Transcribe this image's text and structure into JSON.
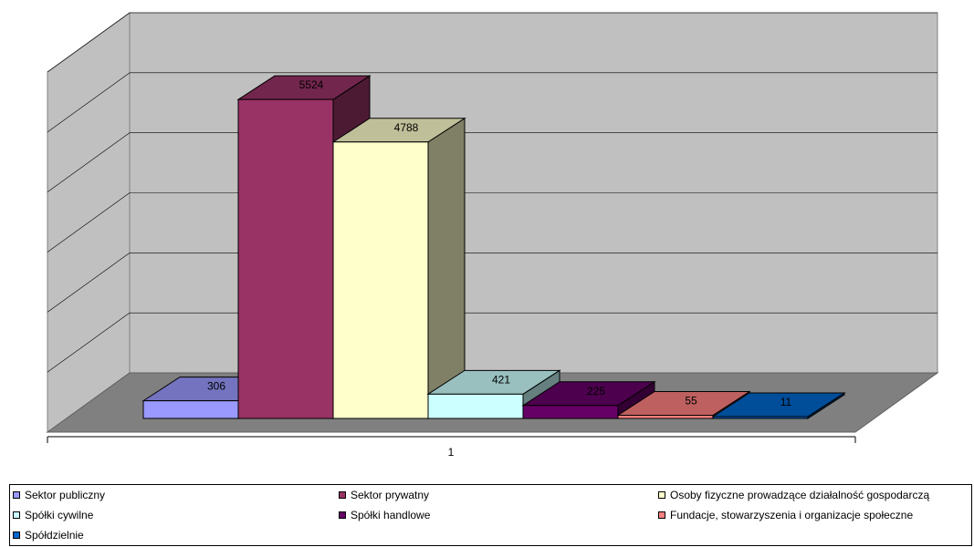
{
  "chart_data": {
    "type": "bar",
    "categories": [
      "1"
    ],
    "series": [
      {
        "name": "Sektor publiczny",
        "values": [
          306
        ],
        "color": "#9999FF"
      },
      {
        "name": "Sektor prywatny",
        "values": [
          5524
        ],
        "color": "#993366"
      },
      {
        "name": "Osoby fizyczne prowadzące działalność gospodarczą",
        "values": [
          4788
        ],
        "color": "#FFFFCC"
      },
      {
        "name": "Spółki cywilne",
        "values": [
          421
        ],
        "color": "#CCFFFF"
      },
      {
        "name": "Spółki handlowe",
        "values": [
          225
        ],
        "color": "#660066"
      },
      {
        "name": "Fundacje, stowarzyszenia i organizacje społeczne",
        "values": [
          55
        ],
        "color": "#FF8080"
      },
      {
        "name": "Spółdzielnie",
        "values": [
          11
        ],
        "color": "#0066CC"
      }
    ],
    "title": "",
    "xlabel": "",
    "ylabel": "",
    "ylim": [
      0,
      6000
    ],
    "grid": true,
    "data_labels": true,
    "legend_position": "bottom",
    "three_d": true,
    "wall_color": "#C0C0C0",
    "floor_color": "#808080"
  }
}
